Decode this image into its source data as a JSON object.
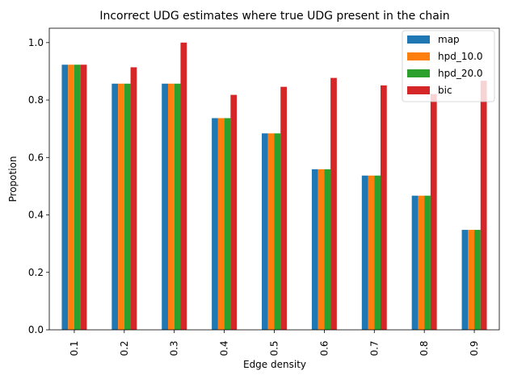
{
  "chart_data": {
    "type": "bar",
    "title": "Incorrect UDG estimates where true UDG present in the chain",
    "xlabel": "Edge density",
    "ylabel": "Propotion",
    "categories": [
      "0.1",
      "0.2",
      "0.3",
      "0.4",
      "0.5",
      "0.6",
      "0.7",
      "0.8",
      "0.9"
    ],
    "ylim": [
      0,
      1.05
    ],
    "yticks": [
      "0.0",
      "0.2",
      "0.4",
      "0.6",
      "0.8",
      "1.0"
    ],
    "legend_position": "top-right",
    "grid": false,
    "series": [
      {
        "name": "map",
        "color": "#1f77b4",
        "values": [
          0.923,
          0.857,
          0.857,
          0.737,
          0.684,
          0.559,
          0.537,
          0.467,
          0.348
        ]
      },
      {
        "name": "hpd_10.0",
        "color": "#ff7f0e",
        "values": [
          0.923,
          0.857,
          0.857,
          0.737,
          0.684,
          0.559,
          0.537,
          0.467,
          0.348
        ]
      },
      {
        "name": "hpd_20.0",
        "color": "#2ca02c",
        "values": [
          0.923,
          0.857,
          0.857,
          0.737,
          0.684,
          0.559,
          0.537,
          0.467,
          0.348
        ]
      },
      {
        "name": "bic",
        "color": "#d62728",
        "values": [
          0.923,
          0.914,
          1.0,
          0.818,
          0.846,
          0.877,
          0.851,
          0.821,
          0.867
        ]
      }
    ]
  }
}
